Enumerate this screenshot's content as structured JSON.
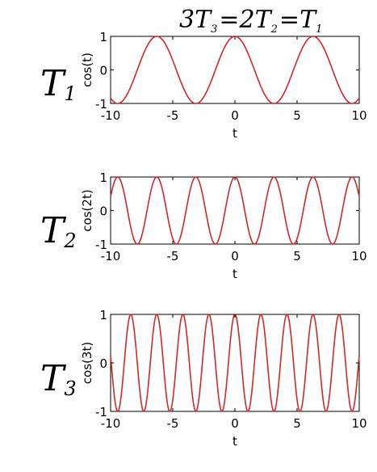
{
  "title": {
    "parts": [
      {
        "text": "3",
        "kind": "coef"
      },
      {
        "text": "T",
        "kind": "var"
      },
      {
        "text": "3",
        "kind": "sub"
      },
      {
        "text": "=",
        "kind": "op"
      },
      {
        "text": "2",
        "kind": "coef"
      },
      {
        "text": "T",
        "kind": "var"
      },
      {
        "text": "2",
        "kind": "sub"
      },
      {
        "text": "=",
        "kind": "op"
      },
      {
        "text": "T",
        "kind": "var"
      },
      {
        "text": "1",
        "kind": "sub"
      }
    ]
  },
  "row_labels": [
    {
      "letter": "T",
      "sub": "1"
    },
    {
      "letter": "T",
      "sub": "2"
    },
    {
      "letter": "T",
      "sub": "3"
    }
  ],
  "line_color": "#d62728",
  "chart_data": [
    {
      "type": "line",
      "function": "cos(t)",
      "frequency": 1,
      "xlabel": "t",
      "ylabel": "cos(t)",
      "xlim": [
        -10,
        10
      ],
      "ylim": [
        -1,
        1
      ],
      "xticks": [
        -10,
        -5,
        0,
        5,
        10
      ],
      "yticks": [
        -1,
        0,
        1
      ],
      "xtick_labels": [
        "-10",
        "-5",
        "0",
        "5",
        "10"
      ],
      "ytick_labels": [
        "-1",
        "0",
        "1"
      ],
      "grid": false
    },
    {
      "type": "line",
      "function": "cos(2t)",
      "frequency": 2,
      "xlabel": "t",
      "ylabel": "cos(2t)",
      "xlim": [
        -10,
        10
      ],
      "ylim": [
        -1,
        1
      ],
      "xticks": [
        -10,
        -5,
        0,
        5,
        10
      ],
      "yticks": [
        -1,
        0,
        1
      ],
      "xtick_labels": [
        "-10",
        "-5",
        "0",
        "5",
        "10"
      ],
      "ytick_labels": [
        "-1",
        "0",
        "1"
      ],
      "grid": false
    },
    {
      "type": "line",
      "function": "cos(3t)",
      "frequency": 3,
      "xlabel": "t",
      "ylabel": "cos(3t)",
      "xlim": [
        -10,
        10
      ],
      "ylim": [
        -1,
        1
      ],
      "xticks": [
        -10,
        -5,
        0,
        5,
        10
      ],
      "yticks": [
        -1,
        0,
        1
      ],
      "xtick_labels": [
        "-10",
        "-5",
        "0",
        "5",
        "10"
      ],
      "ytick_labels": [
        "-1",
        "0",
        "1"
      ],
      "grid": false
    }
  ]
}
